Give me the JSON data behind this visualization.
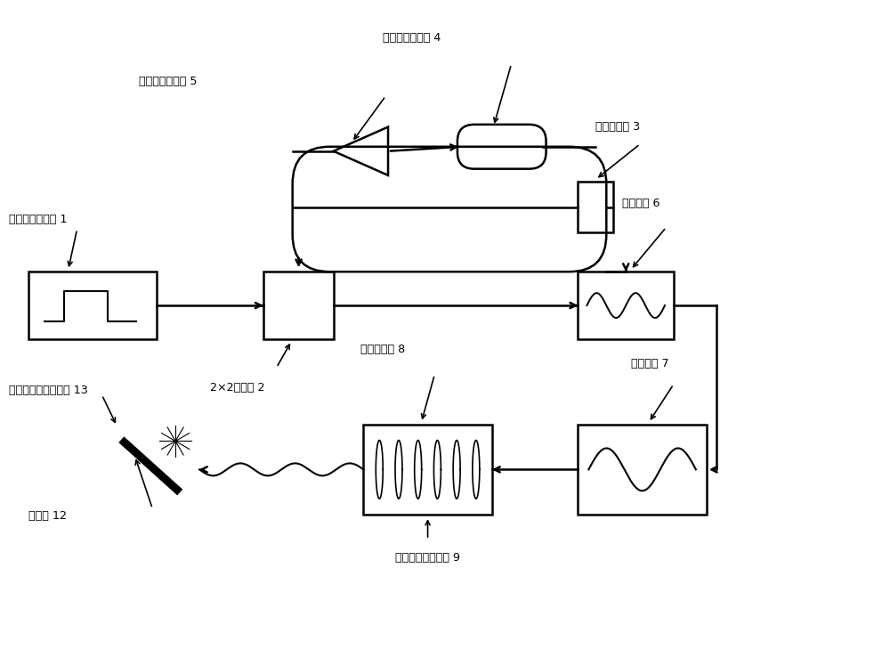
{
  "bg_color": "#ffffff",
  "labels": {
    "laser": "纳秒脉冲激光器 1",
    "switch": "2×2光开关 2",
    "delay": "可调延迟器 3",
    "phase_mod": "宽带相位调制器 4",
    "amp_comp": "增益补偿放大器 5",
    "pre_amp": "预放大器 6",
    "main_amp": "主放大器 7",
    "compressor": "脉冲压缩器 8",
    "ultra_short": "超短激光脉冲序列 9",
    "target_mat": "靶材料 12",
    "radiation": "粒子辐射源脉冲序列 13"
  }
}
